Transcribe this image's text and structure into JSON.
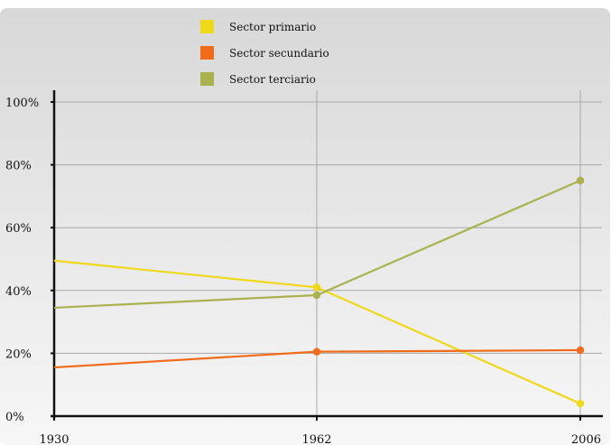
{
  "chart_data": {
    "type": "line",
    "x": [
      "1930",
      "1962",
      "2006"
    ],
    "y_ticks": [
      "0%",
      "20%",
      "40%",
      "60%",
      "80%",
      "100%"
    ],
    "ylim": [
      0,
      100
    ],
    "grid": true,
    "legend_position": "top-left",
    "series": [
      {
        "name": "Sector primario",
        "color": "#f0d81a",
        "values": [
          49.5,
          41,
          4
        ]
      },
      {
        "name": "Sector secundario",
        "color": "#f06b1a",
        "values": [
          15.5,
          20.5,
          21
        ]
      },
      {
        "name": "Sector terciario",
        "color": "#a9b24f",
        "values": [
          34.5,
          38.5,
          75
        ]
      }
    ]
  }
}
